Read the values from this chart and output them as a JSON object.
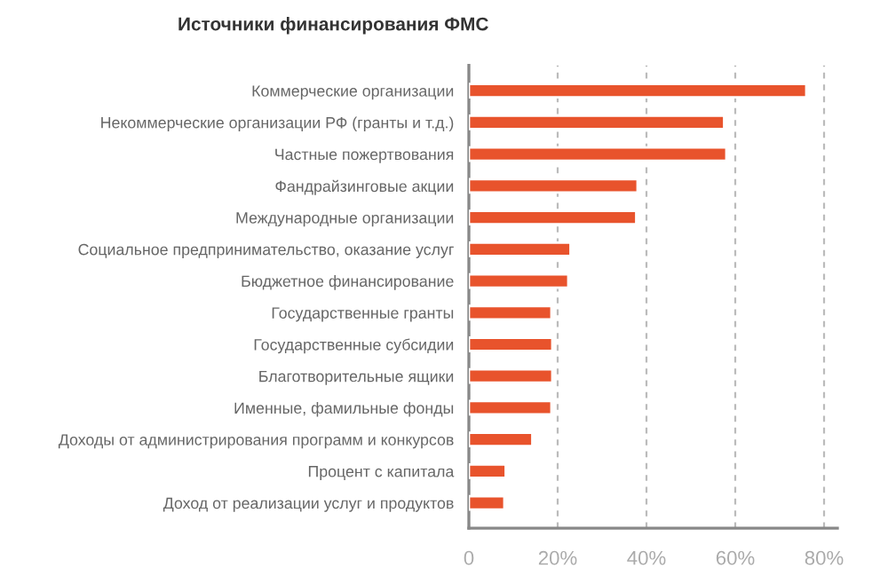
{
  "chart_data": {
    "type": "bar",
    "orientation": "horizontal",
    "title": "Источники финансирования ФМС",
    "categories": [
      "Коммерческие организации",
      "Некоммерческие организации РФ (гранты и т.д.)",
      "Частные пожертвования",
      "Фандрайзинговые акции",
      "Международные организации",
      "Социальное предпринимательство, оказание услуг",
      "Бюджетное финансирование",
      "Государственные гранты",
      "Государственные субсидии",
      "Благотворительные ящики",
      "Именные, фамильные фонды",
      "Доходы от администрирования программ и конкурсов",
      "Процент с капитала",
      "Доход от реализации услуг и продуктов"
    ],
    "values": [
      76,
      57.5,
      58,
      38,
      37.7,
      22.9,
      22.4,
      18.6,
      18.8,
      18.8,
      18.6,
      14.3,
      8.3,
      8
    ],
    "color": "#e8532c",
    "xlim": [
      0,
      83
    ],
    "xticks": [
      0,
      {
        "value": 20,
        "label": "20%"
      },
      {
        "value": 40,
        "label": "40%"
      },
      {
        "value": 60,
        "label": "60%"
      },
      {
        "value": 80,
        "label": "80%"
      }
    ],
    "grid": "x"
  }
}
